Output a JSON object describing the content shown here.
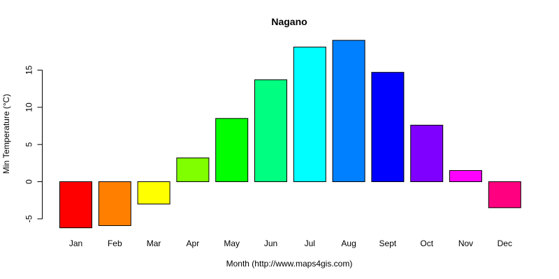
{
  "chart_data": {
    "type": "bar",
    "title": "Nagano",
    "xlabel": "Month (http://www.maps4gis.com)",
    "ylabel": "Min Temperature (°C)",
    "categories": [
      "Jan",
      "Feb",
      "Mar",
      "Apr",
      "May",
      "Jun",
      "Jul",
      "Aug",
      "Sept",
      "Oct",
      "Nov",
      "Dec"
    ],
    "values": [
      -6.2,
      -5.9,
      -3.0,
      3.2,
      8.5,
      13.7,
      18.1,
      19.0,
      14.7,
      7.6,
      1.5,
      -3.5
    ],
    "colors": [
      "#FF0000",
      "#FF8000",
      "#FFFF00",
      "#80FF00",
      "#00FF00",
      "#00FF80",
      "#00FFFF",
      "#0080FF",
      "#0000FF",
      "#8000FF",
      "#FF00FF",
      "#FF0080"
    ],
    "yticks": [
      -5,
      0,
      5,
      10,
      15
    ],
    "ylim": [
      -6.2,
      19.0
    ],
    "grid": false,
    "legend": "none"
  }
}
